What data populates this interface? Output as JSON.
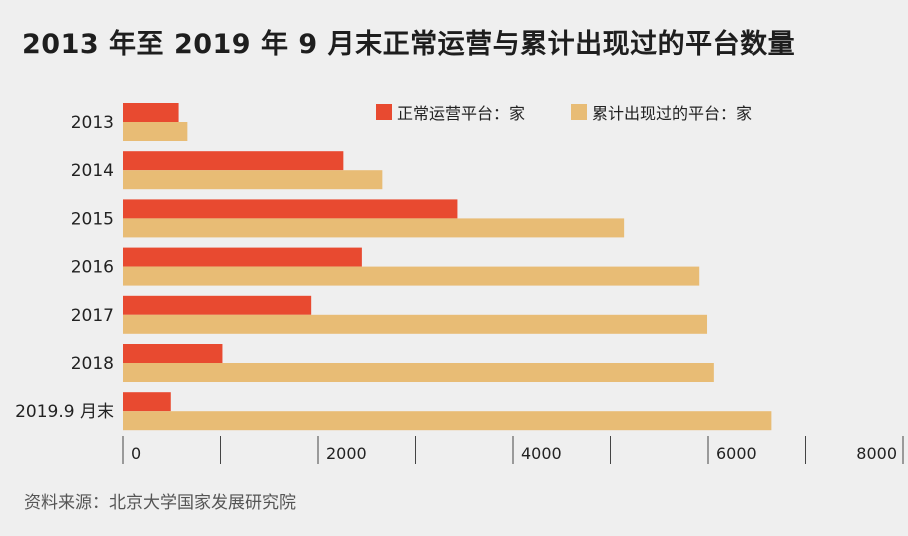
{
  "title": "2013 年至 2019 年 9 月末正常运营与累计出现过的平台数量",
  "source": "资料来源：北京大学国家发展研究院",
  "chart_data": {
    "type": "bar",
    "orientation": "horizontal",
    "title": "2013 年至 2019 年 9 月末正常运营与累计出现过的平台数量",
    "categories": [
      "2013",
      "2014",
      "2015",
      "2016",
      "2017",
      "2018",
      "2019.9 月末"
    ],
    "series": [
      {
        "name": "正常运营平台：家",
        "color": "#e84a30",
        "values": [
          570,
          2260,
          3430,
          2450,
          1930,
          1020,
          490
        ]
      },
      {
        "name": "累计出现过的平台：家",
        "color": "#e8bc75",
        "values": [
          660,
          2660,
          5140,
          5910,
          5990,
          6060,
          6650
        ]
      }
    ],
    "x_ticks": [
      "0",
      "2000",
      "4000",
      "6000",
      "8000"
    ],
    "xlim": [
      0,
      8000
    ],
    "legend_position": "top-right",
    "grid": false
  }
}
